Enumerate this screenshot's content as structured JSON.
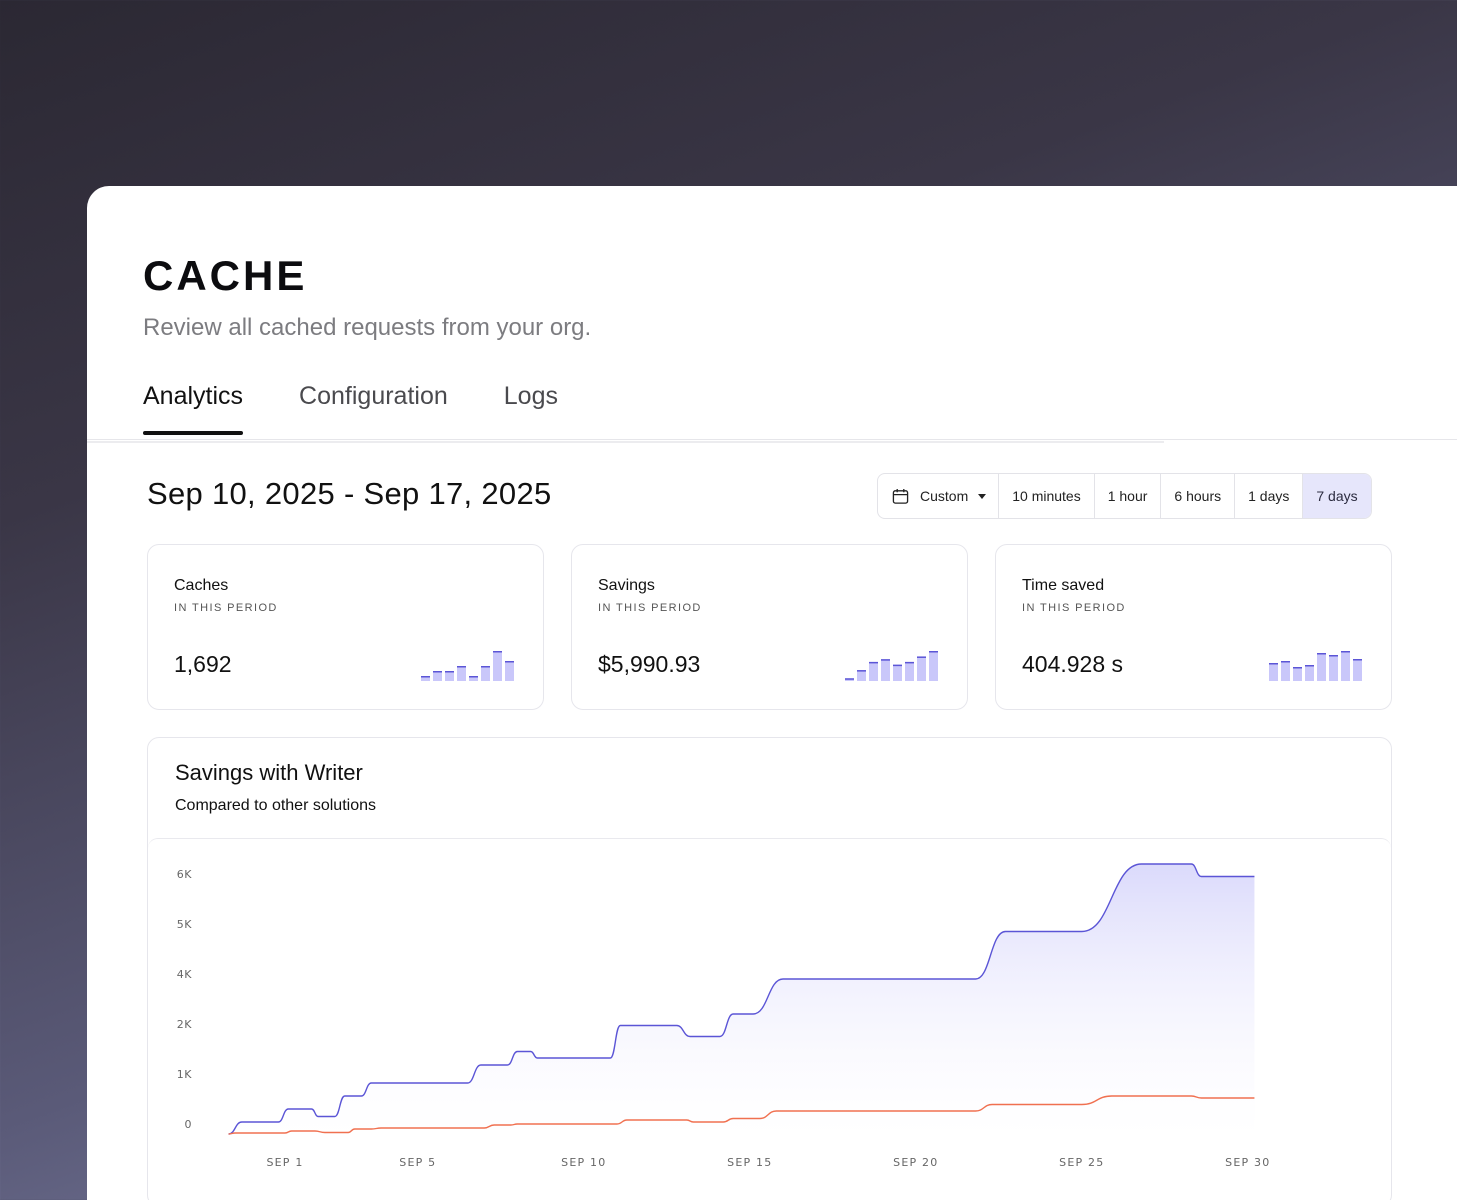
{
  "header": {
    "title": "CACHE",
    "subtitle": "Review all cached requests from your org."
  },
  "tabs": [
    {
      "label": "Analytics",
      "active": true
    },
    {
      "label": "Configuration",
      "active": false
    },
    {
      "label": "Logs",
      "active": false
    }
  ],
  "date_range": "Sep 10, 2025 - Sep 17, 2025",
  "range_selector": {
    "custom_label": "Custom",
    "options": [
      "10 minutes",
      "1 hour",
      "6 hours",
      "1 days",
      "7 days"
    ],
    "selected": "7 days"
  },
  "stats": [
    {
      "title": "Caches",
      "sub": "IN THIS PERIOD",
      "value": "1,692",
      "spark": [
        1,
        2,
        2,
        3,
        1,
        3,
        6,
        4
      ]
    },
    {
      "title": "Savings",
      "sub": "IN THIS PERIOD",
      "value": "$5,990.93",
      "spark": [
        1,
        4,
        7,
        8,
        6,
        7,
        9,
        11
      ]
    },
    {
      "title": "Time saved",
      "sub": "IN THIS PERIOD",
      "value": "404.928 s",
      "spark": [
        9,
        10,
        7,
        8,
        14,
        13,
        15,
        11
      ]
    }
  ],
  "colors": {
    "accent": "#5b55d6",
    "comparison": "#f07050",
    "active_segment_bg": "#e6e6fb"
  },
  "chart_data": {
    "type": "area",
    "title": "Savings with Writer",
    "subtitle": "Compared to other solutions",
    "x_ticks": [
      "SEP 1",
      "SEP 5",
      "SEP 10",
      "SEP 15",
      "SEP 20",
      "SEP 25",
      "SEP 30"
    ],
    "y_ticks": [
      "0",
      "1K",
      "2K",
      "4K",
      "5K",
      "6K"
    ],
    "series": [
      {
        "name": "",
        "points": [
          [
            -0.7,
            -200
          ],
          [
            -0.3,
            40
          ],
          [
            0.8,
            40
          ],
          [
            1.1,
            300
          ],
          [
            1.8,
            300
          ],
          [
            2.0,
            150
          ],
          [
            2.5,
            150
          ],
          [
            2.8,
            560
          ],
          [
            3.3,
            560
          ],
          [
            3.6,
            820
          ],
          [
            6.5,
            820
          ],
          [
            6.9,
            1180
          ],
          [
            7.7,
            1180
          ],
          [
            8.0,
            1450
          ],
          [
            8.4,
            1450
          ],
          [
            8.6,
            1320
          ],
          [
            10.8,
            1320
          ],
          [
            11.1,
            1970
          ],
          [
            12.8,
            1970
          ],
          [
            13.2,
            1750
          ],
          [
            14.1,
            1750
          ],
          [
            14.5,
            2200
          ],
          [
            15.1,
            2200
          ],
          [
            16.0,
            2900
          ],
          [
            21.8,
            2900
          ],
          [
            22.7,
            3850
          ],
          [
            25.0,
            3850
          ],
          [
            26.8,
            5200
          ],
          [
            28.3,
            5200
          ],
          [
            28.6,
            4950
          ],
          [
            30.2,
            4950
          ]
        ]
      },
      {
        "name": "",
        "points": [
          [
            -0.7,
            -200
          ],
          [
            -0.5,
            -180
          ],
          [
            1.0,
            -180
          ],
          [
            1.2,
            -140
          ],
          [
            1.9,
            -140
          ],
          [
            2.2,
            -170
          ],
          [
            2.9,
            -170
          ],
          [
            3.1,
            -100
          ],
          [
            3.6,
            -100
          ],
          [
            3.9,
            -80
          ],
          [
            7.0,
            -80
          ],
          [
            7.3,
            -20
          ],
          [
            7.8,
            -20
          ],
          [
            8.0,
            0
          ],
          [
            11.0,
            0
          ],
          [
            11.3,
            80
          ],
          [
            13.1,
            80
          ],
          [
            13.3,
            40
          ],
          [
            14.2,
            40
          ],
          [
            14.5,
            110
          ],
          [
            15.3,
            110
          ],
          [
            15.8,
            260
          ],
          [
            21.8,
            260
          ],
          [
            22.3,
            390
          ],
          [
            25.0,
            390
          ],
          [
            25.9,
            560
          ],
          [
            28.3,
            560
          ],
          [
            28.6,
            520
          ],
          [
            30.2,
            520
          ]
        ]
      }
    ]
  }
}
